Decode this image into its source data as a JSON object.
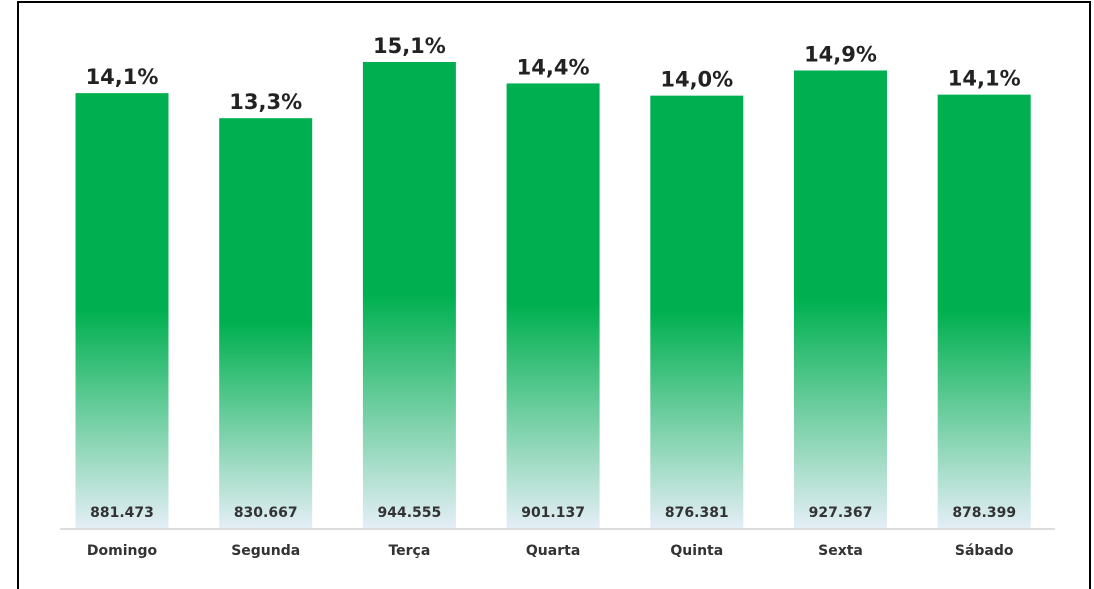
{
  "chart_data": {
    "type": "bar",
    "categories": [
      "Domingo",
      "Segunda",
      "Terça",
      "Quarta",
      "Quinta",
      "Sexta",
      "Sábado"
    ],
    "values": [
      881473,
      830667,
      944555,
      901137,
      876381,
      927367,
      878399
    ],
    "value_labels": [
      "881.473",
      "830.667",
      "944.555",
      "901.137",
      "876.381",
      "927.367",
      "878.399"
    ],
    "percentages": [
      14.1,
      13.3,
      15.1,
      14.4,
      14.0,
      14.9,
      14.1
    ],
    "percentage_labels": [
      "14,1%",
      "13,3%",
      "15,1%",
      "14,4%",
      "14,0%",
      "14,9%",
      "14,1%"
    ],
    "color": "#00b050"
  }
}
